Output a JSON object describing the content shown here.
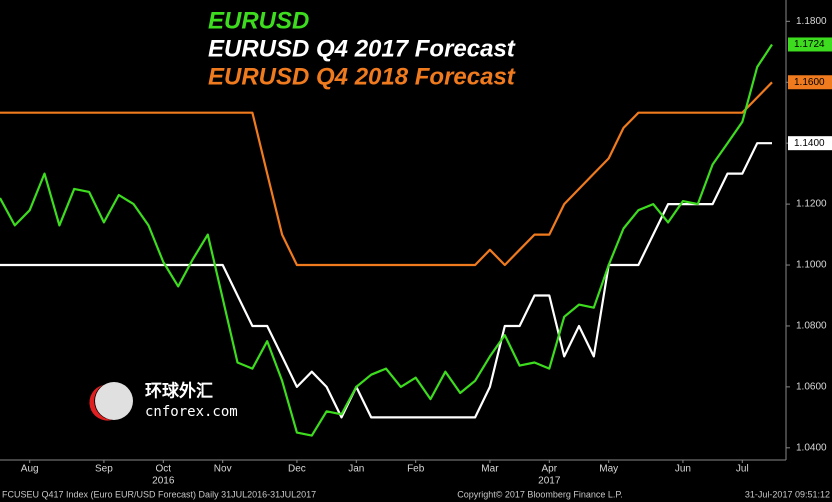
{
  "chart_data": {
    "type": "line",
    "categories": [
      null,
      null,
      "Aug",
      null,
      null,
      null,
      null,
      "Sep",
      null,
      null,
      null,
      "Oct",
      null,
      null,
      null,
      "Nov",
      null,
      null,
      null,
      null,
      "Dec",
      null,
      null,
      null,
      "Jan",
      null,
      null,
      null,
      "Feb",
      null,
      null,
      null,
      null,
      "Mar",
      null,
      null,
      null,
      "Apr",
      null,
      null,
      null,
      "May",
      null,
      null,
      null,
      null,
      "Jun",
      null,
      null,
      null,
      "Jul",
      null,
      null
    ],
    "category_sublabels": [
      null,
      null,
      null,
      null,
      null,
      null,
      null,
      null,
      null,
      null,
      null,
      "2016",
      null,
      null,
      null,
      null,
      null,
      null,
      null,
      null,
      null,
      null,
      null,
      null,
      null,
      null,
      null,
      null,
      null,
      null,
      null,
      null,
      null,
      null,
      null,
      null,
      null,
      "2017",
      null,
      null,
      null,
      null,
      null,
      null,
      null,
      null,
      null,
      null,
      null,
      null,
      null,
      null,
      null
    ],
    "series": [
      {
        "name": "EURUSD",
        "color": "#3ddc1e",
        "values": [
          1.122,
          1.113,
          1.118,
          1.13,
          1.113,
          1.125,
          1.124,
          1.114,
          1.123,
          1.12,
          1.113,
          1.101,
          1.093,
          1.102,
          1.11,
          1.089,
          1.068,
          1.066,
          1.075,
          1.062,
          1.045,
          1.044,
          1.052,
          1.051,
          1.06,
          1.064,
          1.066,
          1.06,
          1.063,
          1.056,
          1.065,
          1.058,
          1.062,
          1.07,
          1.077,
          1.067,
          1.068,
          1.066,
          1.083,
          1.087,
          1.086,
          1.1,
          1.112,
          1.118,
          1.12,
          1.114,
          1.121,
          1.12,
          1.133,
          1.14,
          1.147,
          1.165,
          1.1724
        ],
        "value_labels": [
          null,
          null,
          null,
          null,
          null,
          null,
          null,
          null,
          null,
          null,
          null,
          null,
          null,
          null,
          null,
          null,
          null,
          null,
          null,
          null,
          null,
          null,
          null,
          null,
          null,
          null,
          null,
          null,
          null,
          null,
          null,
          null,
          null,
          null,
          null,
          null,
          null,
          null,
          null,
          null,
          null,
          null,
          null,
          null,
          null,
          null,
          null,
          null,
          null,
          null,
          null,
          null,
          "1.1724"
        ]
      },
      {
        "name": "EURUSD Q4 2017 Forecast",
        "color": "#ffffff",
        "values": [
          1.1,
          1.1,
          1.1,
          1.1,
          1.1,
          1.1,
          1.1,
          1.1,
          1.1,
          1.1,
          1.1,
          1.1,
          1.1,
          1.1,
          1.1,
          1.1,
          1.09,
          1.08,
          1.08,
          1.07,
          1.06,
          1.065,
          1.06,
          1.05,
          1.06,
          1.05,
          1.05,
          1.05,
          1.05,
          1.05,
          1.05,
          1.05,
          1.05,
          1.06,
          1.08,
          1.08,
          1.09,
          1.09,
          1.07,
          1.08,
          1.07,
          1.1,
          1.1,
          1.1,
          1.11,
          1.12,
          1.12,
          1.12,
          1.12,
          1.13,
          1.13,
          1.14,
          1.14
        ],
        "value_labels": [
          null,
          null,
          null,
          null,
          null,
          null,
          null,
          null,
          null,
          null,
          null,
          null,
          null,
          null,
          null,
          null,
          null,
          null,
          null,
          null,
          null,
          null,
          null,
          null,
          null,
          null,
          null,
          null,
          null,
          null,
          null,
          null,
          null,
          null,
          null,
          null,
          null,
          null,
          null,
          null,
          null,
          null,
          null,
          null,
          null,
          null,
          null,
          null,
          null,
          null,
          null,
          null,
          "1.1400"
        ]
      },
      {
        "name": "EURUSD Q4 2018 Forecast",
        "color": "#f07a1e",
        "values": [
          1.15,
          1.15,
          1.15,
          1.15,
          1.15,
          1.15,
          1.15,
          1.15,
          1.15,
          1.15,
          1.15,
          1.15,
          1.15,
          1.15,
          1.15,
          1.15,
          1.15,
          1.15,
          1.13,
          1.11,
          1.1,
          1.1,
          1.1,
          1.1,
          1.1,
          1.1,
          1.1,
          1.1,
          1.1,
          1.1,
          1.1,
          1.1,
          1.1,
          1.105,
          1.1,
          1.105,
          1.11,
          1.11,
          1.12,
          1.125,
          1.13,
          1.135,
          1.145,
          1.15,
          1.15,
          1.15,
          1.15,
          1.15,
          1.15,
          1.15,
          1.15,
          1.155,
          1.16
        ],
        "value_labels": [
          null,
          null,
          null,
          null,
          null,
          null,
          null,
          null,
          null,
          null,
          null,
          null,
          null,
          null,
          null,
          null,
          null,
          null,
          null,
          null,
          null,
          null,
          null,
          null,
          null,
          null,
          null,
          null,
          null,
          null,
          null,
          null,
          null,
          null,
          null,
          null,
          null,
          null,
          null,
          null,
          null,
          null,
          null,
          null,
          null,
          null,
          null,
          null,
          null,
          null,
          null,
          null,
          "1.1600"
        ]
      }
    ],
    "ylim": [
      1.036,
      1.187
    ],
    "yticks": [
      {
        "value": 1.04,
        "label": "1.0400"
      },
      {
        "value": 1.06,
        "label": "1.0600"
      },
      {
        "value": 1.08,
        "label": "1.0800"
      },
      {
        "value": 1.1,
        "label": "1.1000"
      },
      {
        "value": 1.12,
        "label": "1.1200"
      },
      {
        "value": 1.14,
        "label": "1.1400"
      },
      {
        "value": 1.16,
        "label": "1.1600"
      },
      {
        "value": 1.18,
        "label": "1.1800"
      }
    ],
    "grid": false,
    "footer": {
      "left": "FCUSEU Q417 Index (Euro EUR/USD Forecast)  Daily 31JUL2016-31JUL2017",
      "center": "Copyright© 2017 Bloomberg Finance L.P.",
      "right": "31-Jul-2017 09:51:12"
    },
    "watermark": {
      "cn": "环球外汇",
      "en": "cnforex.com"
    }
  }
}
